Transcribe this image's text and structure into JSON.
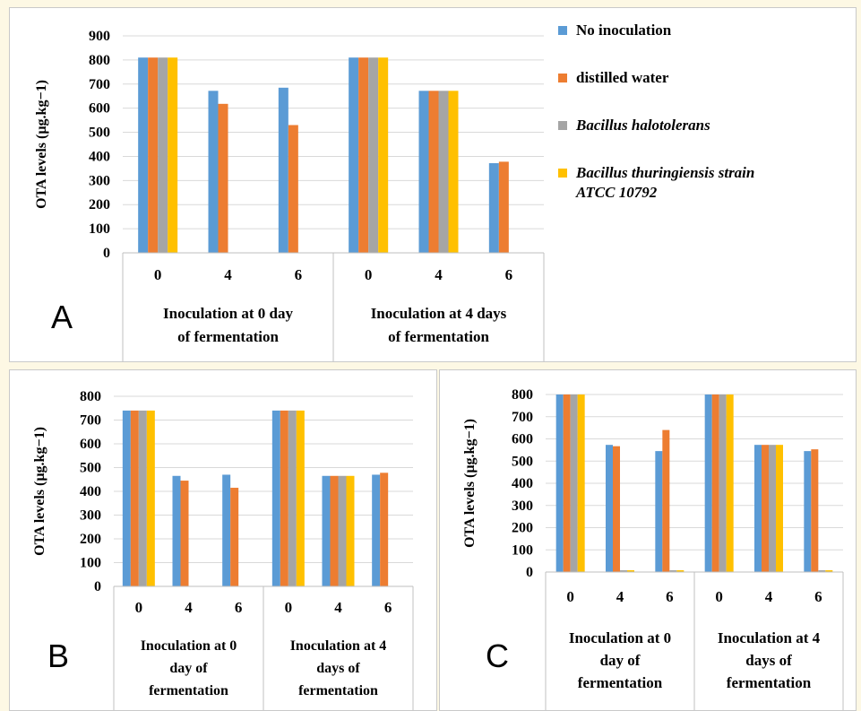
{
  "panels": {
    "a_label": "A",
    "b_label": "B",
    "c_label": "C"
  },
  "legend": [
    {
      "name": "No inoculation",
      "color": "#5b9bd5",
      "italic": false
    },
    {
      "name": "distilled water",
      "color": "#ed7d31",
      "italic": false
    },
    {
      "name": "Bacillus halotolerans",
      "color": "#a5a5a5",
      "italic": true
    },
    {
      "name": "Bacillus thuringiensis strain ATCC 10792",
      "color": "#ffc000",
      "italic": true
    }
  ],
  "chart_data": [
    {
      "panel": "A",
      "type": "bar",
      "ylabel": "OTA levels (µg.kg−1)",
      "ylim": [
        0,
        900
      ],
      "yticks": [
        0,
        100,
        200,
        300,
        400,
        500,
        600,
        700,
        800,
        900
      ],
      "categories": [
        "0",
        "4",
        "6",
        "0",
        "4",
        "6"
      ],
      "groups": [
        {
          "label": "Inoculation at 0 day of fermentation",
          "lines": [
            "Inoculation at 0 day",
            "of fermentation"
          ],
          "span": 3
        },
        {
          "label": "Inoculation at 4 days of fermentation",
          "lines": [
            "Inoculation at 4 days",
            "of fermentation"
          ],
          "span": 3
        }
      ],
      "series": [
        {
          "name": "No inoculation",
          "values": [
            810,
            672,
            685,
            810,
            672,
            372
          ]
        },
        {
          "name": "distilled water",
          "values": [
            810,
            618,
            530,
            810,
            672,
            378
          ]
        },
        {
          "name": "Bacillus halotolerans",
          "values": [
            810,
            0,
            0,
            810,
            672,
            0
          ]
        },
        {
          "name": "Bacillus thuringiensis strain ATCC 10792",
          "values": [
            810,
            0,
            0,
            810,
            672,
            0
          ]
        }
      ]
    },
    {
      "panel": "B",
      "type": "bar",
      "ylabel": "OTA levels (µg.kg−1)",
      "ylim": [
        0,
        800
      ],
      "yticks": [
        0,
        100,
        200,
        300,
        400,
        500,
        600,
        700,
        800
      ],
      "categories": [
        "0",
        "4",
        "6",
        "0",
        "4",
        "6"
      ],
      "groups": [
        {
          "label": "Inoculation at 0 day of fermentation",
          "lines": [
            "Inoculation at 0",
            "day of",
            "fermentation"
          ],
          "span": 3
        },
        {
          "label": "Inoculation at 4 days of fermentation",
          "lines": [
            "Inoculation at 4",
            "days of",
            "fermentation"
          ],
          "span": 3
        }
      ],
      "series": [
        {
          "name": "No inoculation",
          "values": [
            740,
            465,
            470,
            740,
            465,
            470
          ]
        },
        {
          "name": "distilled water",
          "values": [
            740,
            445,
            415,
            740,
            465,
            478
          ]
        },
        {
          "name": "Bacillus halotolerans",
          "values": [
            740,
            0,
            0,
            740,
            465,
            0
          ]
        },
        {
          "name": "Bacillus thuringiensis strain ATCC 10792",
          "values": [
            740,
            0,
            0,
            740,
            465,
            0
          ]
        }
      ]
    },
    {
      "panel": "C",
      "type": "bar",
      "ylabel": "OTA levels (µg.kg−1)",
      "ylim": [
        0,
        800
      ],
      "yticks": [
        0,
        100,
        200,
        300,
        400,
        500,
        600,
        700,
        800
      ],
      "categories": [
        "0",
        "4",
        "6",
        "0",
        "4",
        "6"
      ],
      "groups": [
        {
          "label": "Inoculation at 0 day of fermentation",
          "lines": [
            "Inoculation at 0",
            "day of",
            "fermentation"
          ],
          "span": 3
        },
        {
          "label": "Inoculation at 4 days of fermentation",
          "lines": [
            "Inoculation at 4",
            "days of",
            "fermentation"
          ],
          "span": 3
        }
      ],
      "series": [
        {
          "name": "No inoculation",
          "values": [
            800,
            573,
            545,
            800,
            573,
            545
          ]
        },
        {
          "name": "distilled water",
          "values": [
            800,
            567,
            640,
            800,
            573,
            553
          ]
        },
        {
          "name": "Bacillus halotolerans",
          "values": [
            800,
            8,
            8,
            800,
            573,
            8
          ]
        },
        {
          "name": "Bacillus thuringiensis strain ATCC 10792",
          "values": [
            800,
            8,
            8,
            800,
            573,
            8
          ]
        }
      ]
    }
  ]
}
